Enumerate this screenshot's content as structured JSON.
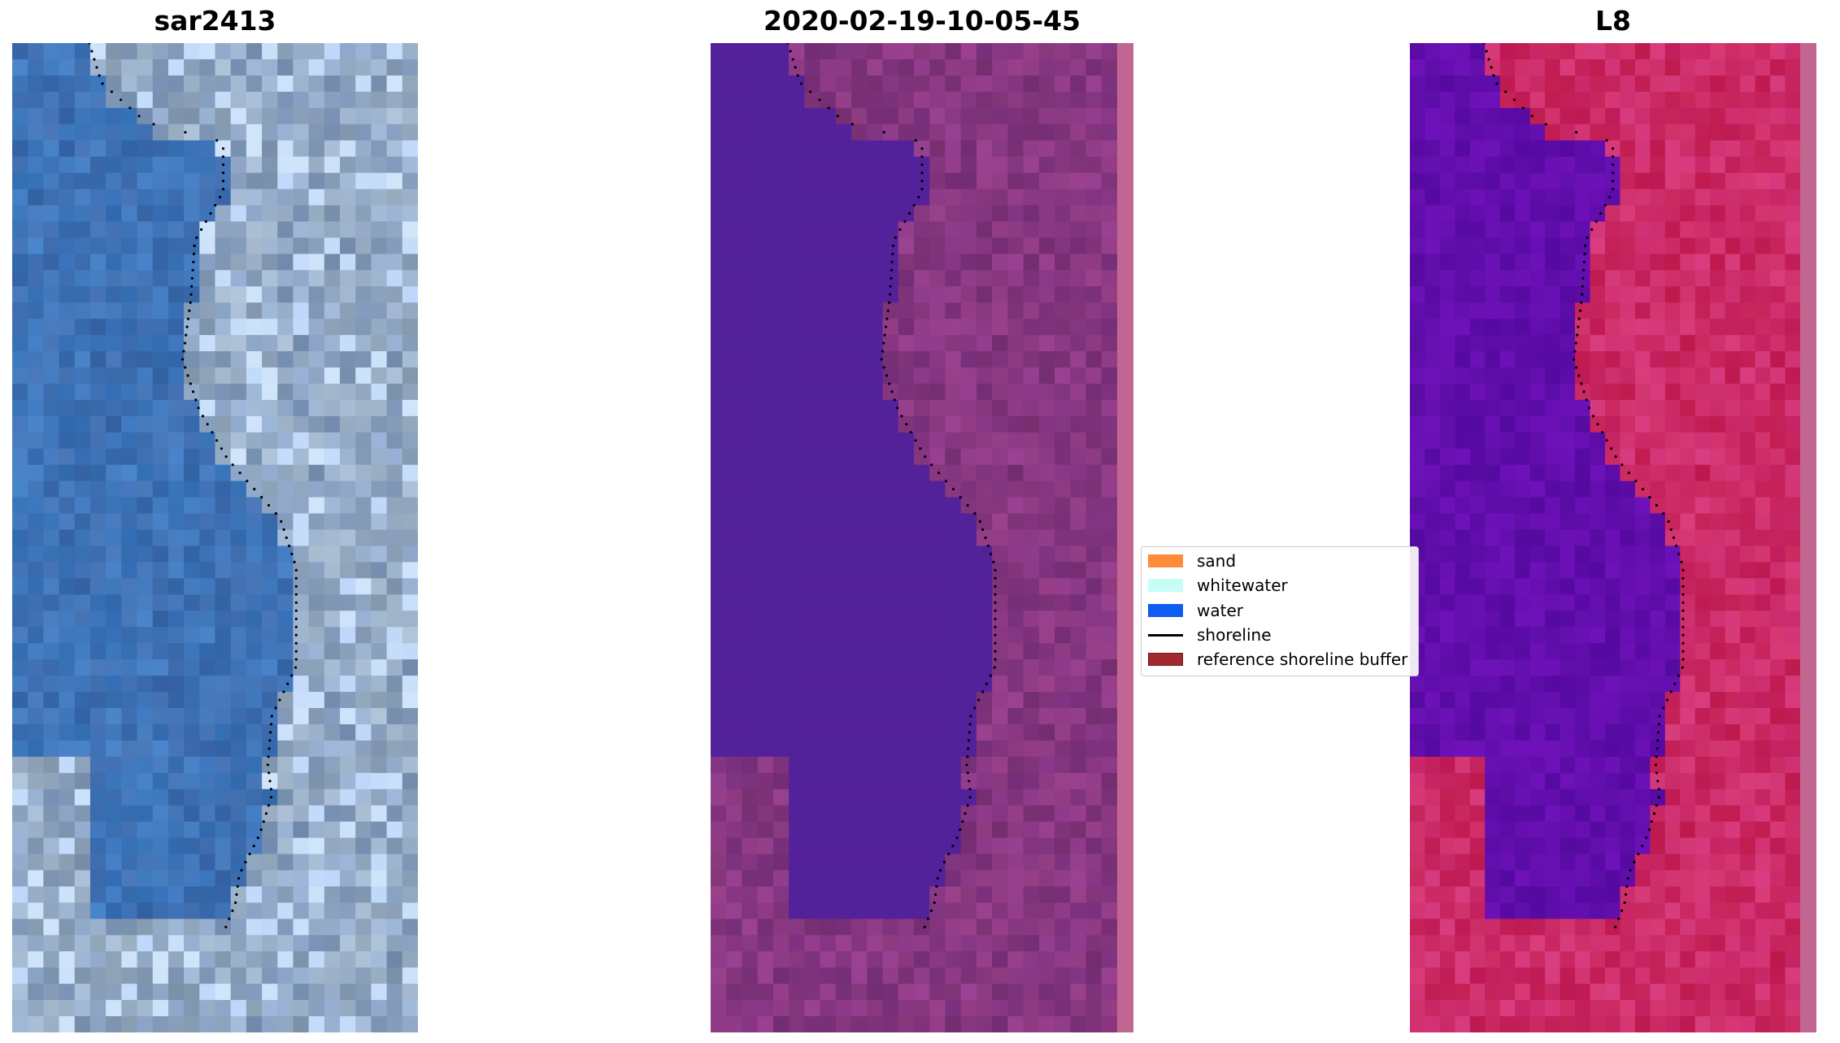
{
  "panels": [
    {
      "title": "sar2413",
      "style": "rgb"
    },
    {
      "title": "2020-02-19-10-05-45",
      "style": "classified"
    },
    {
      "title": "L8",
      "style": "index"
    }
  ],
  "legend": {
    "items": [
      {
        "label": "sand",
        "color": "#ff8c3a",
        "kind": "patch"
      },
      {
        "label": "whitewater",
        "color": "#c8fcf6",
        "kind": "patch"
      },
      {
        "label": "water",
        "color": "#0f5cf0",
        "kind": "patch"
      },
      {
        "label": "shoreline",
        "color": "#000000",
        "kind": "line"
      },
      {
        "label": "reference shoreline buffer",
        "color": "#a3292e",
        "kind": "patch"
      }
    ]
  },
  "colors": {
    "water_class": "#53229a",
    "land_class": "#7d3476",
    "buffer_strip": "#c06691",
    "index_water": "#5b0aa5",
    "index_land": "#cf1a50"
  }
}
